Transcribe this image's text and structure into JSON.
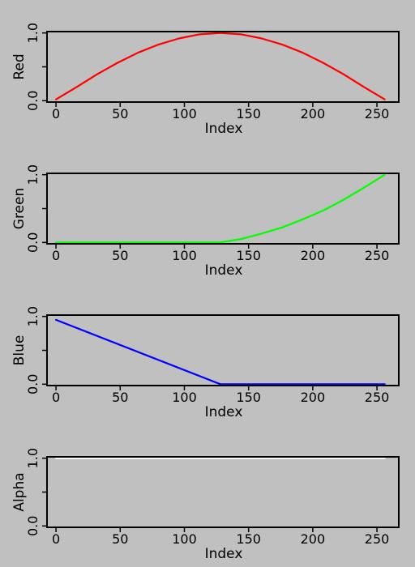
{
  "page_background": "#c0c0c0",
  "chart_data": [
    {
      "type": "line",
      "xlabel": "Index",
      "ylabel": "Red",
      "xlim": [
        -7,
        267
      ],
      "ylim": [
        -0.02,
        1.02
      ],
      "xticks": [
        0,
        50,
        100,
        150,
        200,
        250
      ],
      "xtick_labels": [
        "0",
        "50",
        "100",
        "150",
        "200",
        "250"
      ],
      "yticks": [
        0,
        0.5,
        1
      ],
      "ytick_labels": [
        "0.0",
        "",
        "1.0"
      ],
      "grid": false,
      "legend": "none",
      "series": [
        {
          "color": "#ff0000",
          "x": [
            0,
            16,
            32,
            48,
            64,
            80,
            96,
            112,
            128,
            144,
            160,
            176,
            192,
            208,
            224,
            240,
            256
          ],
          "y": [
            0.02,
            0.2,
            0.39,
            0.56,
            0.71,
            0.83,
            0.92,
            0.98,
            1.0,
            0.98,
            0.92,
            0.83,
            0.71,
            0.56,
            0.39,
            0.2,
            0.02
          ]
        }
      ]
    },
    {
      "type": "line",
      "xlabel": "Index",
      "ylabel": "Green",
      "xlim": [
        -7,
        267
      ],
      "ylim": [
        -0.02,
        1.02
      ],
      "xticks": [
        0,
        50,
        100,
        150,
        200,
        250
      ],
      "xtick_labels": [
        "0",
        "50",
        "100",
        "150",
        "200",
        "250"
      ],
      "yticks": [
        0,
        0.5,
        1
      ],
      "ytick_labels": [
        "0.0",
        "",
        "1.0"
      ],
      "grid": false,
      "legend": "none",
      "series": [
        {
          "color": "#00ff00",
          "x": [
            0,
            64,
            128,
            144,
            160,
            176,
            192,
            208,
            224,
            240,
            256
          ],
          "y": [
            0,
            0,
            0,
            0.05,
            0.13,
            0.22,
            0.34,
            0.47,
            0.63,
            0.81,
            1.0
          ]
        }
      ]
    },
    {
      "type": "line",
      "xlabel": "Index",
      "ylabel": "Blue",
      "xlim": [
        -7,
        267
      ],
      "ylim": [
        -0.02,
        1.02
      ],
      "xticks": [
        0,
        50,
        100,
        150,
        200,
        250
      ],
      "xtick_labels": [
        "0",
        "50",
        "100",
        "150",
        "200",
        "250"
      ],
      "yticks": [
        0,
        0.5,
        1
      ],
      "ytick_labels": [
        "0.0",
        "",
        "1.0"
      ],
      "grid": false,
      "legend": "none",
      "series": [
        {
          "color": "#0000ff",
          "x": [
            0,
            128,
            256
          ],
          "y": [
            0.95,
            0,
            0
          ]
        }
      ]
    },
    {
      "type": "line",
      "xlabel": "Index",
      "ylabel": "Alpha",
      "xlim": [
        -7,
        267
      ],
      "ylim": [
        -0.02,
        1.02
      ],
      "xticks": [
        0,
        50,
        100,
        150,
        200,
        250
      ],
      "xtick_labels": [
        "0",
        "50",
        "100",
        "150",
        "200",
        "250"
      ],
      "yticks": [
        0,
        0.5,
        1
      ],
      "ytick_labels": [
        "0.0",
        "",
        "1.0"
      ],
      "grid": false,
      "legend": "none",
      "series": [
        {
          "color": "#ffffff",
          "x": [
            0,
            256
          ],
          "y": [
            1.0,
            1.0
          ]
        }
      ]
    }
  ]
}
